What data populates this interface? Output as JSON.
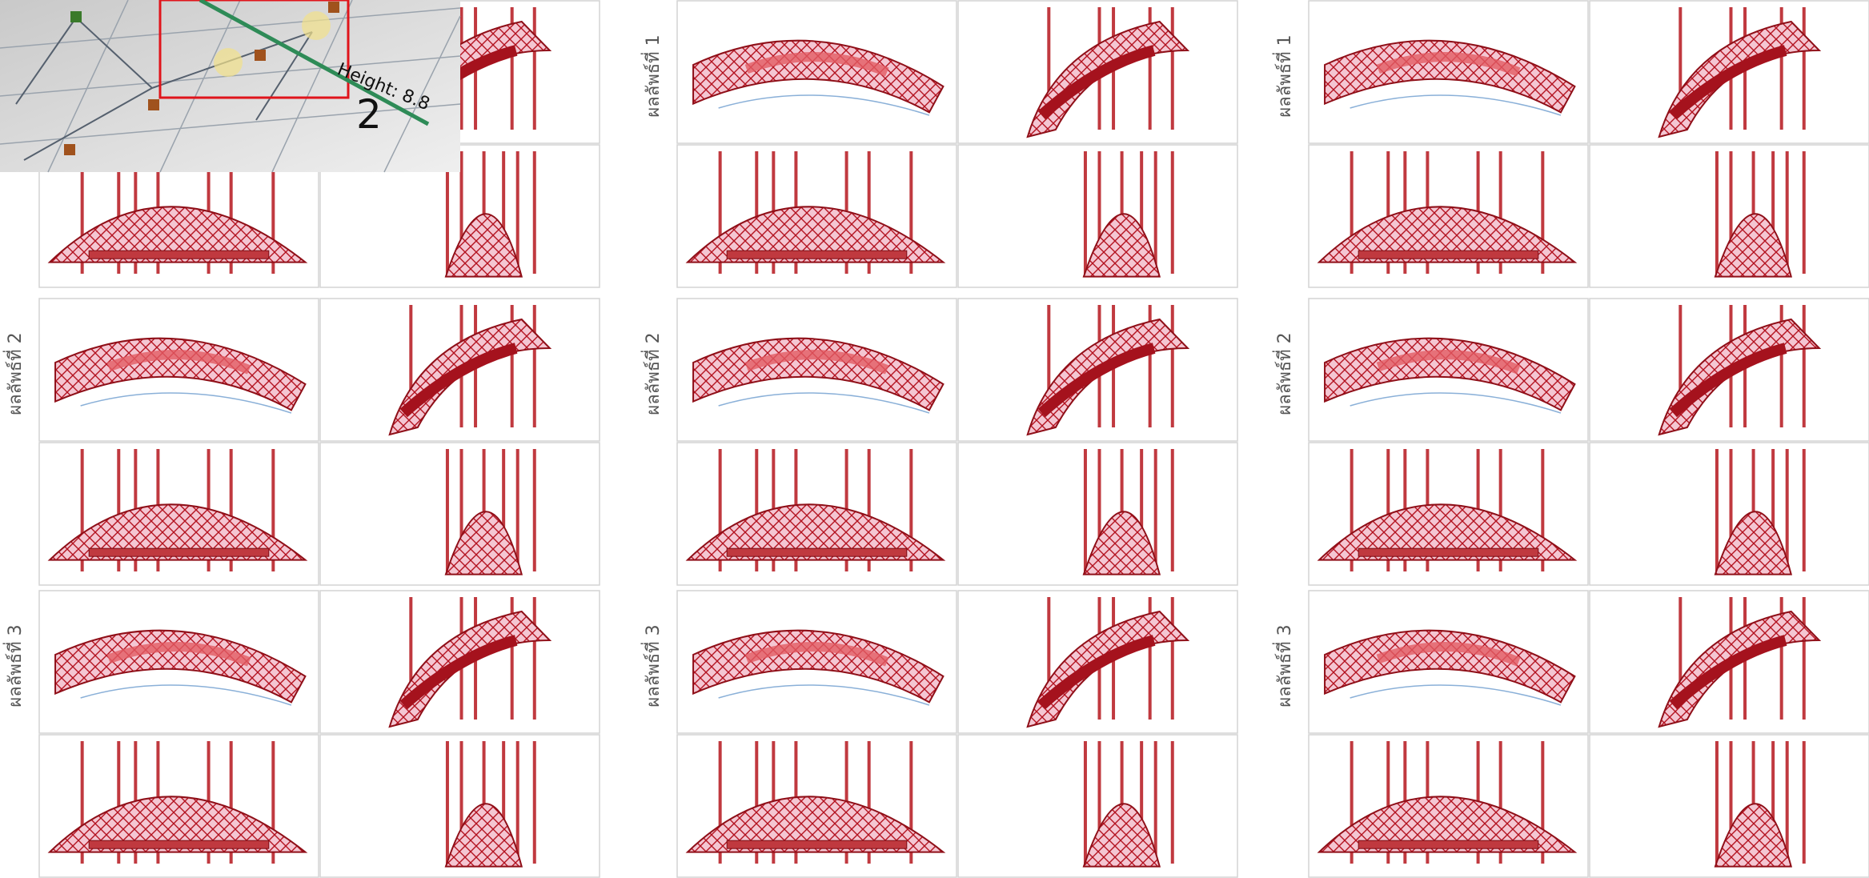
{
  "inset": {
    "dimension_label": "Height: 8.8",
    "marker": "2"
  },
  "columns": [
    {
      "labels": [
        "ผลลัพธ์ที่ 2",
        "ผลลัพธ์ที่ 3"
      ]
    },
    {
      "labels": [
        "ผลลัพธ์ที่ 1",
        "ผลลัพธ์ที่ 2",
        "ผลลัพธ์ที่ 3"
      ]
    },
    {
      "labels": [
        "ผลลัพธ์ที่ 1",
        "ผลลัพธ์ที่ 2",
        "ผลลัพธ์ที่ 3"
      ]
    }
  ]
}
